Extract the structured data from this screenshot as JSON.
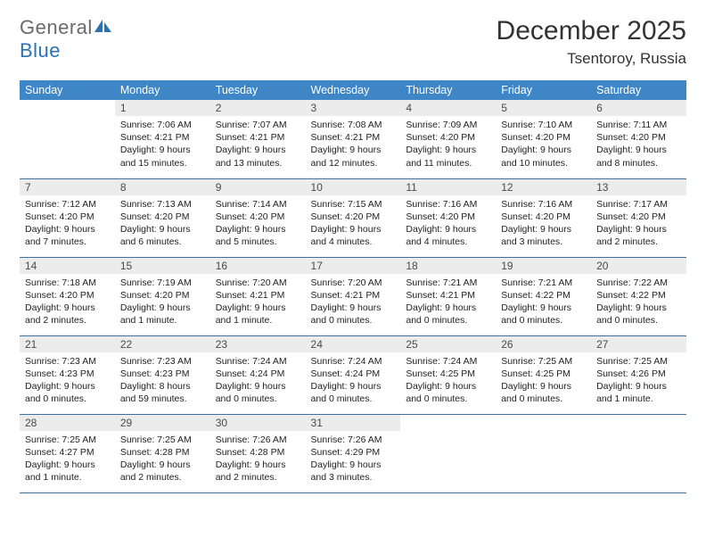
{
  "brand": {
    "part1": "General",
    "part2": "Blue"
  },
  "title": "December 2025",
  "location": "Tsentoroy, Russia",
  "colors": {
    "header_bg": "#3f86c7",
    "header_text": "#ffffff",
    "daynum_bg": "#ececec",
    "daynum_text": "#4a4a4a",
    "row_border": "#3f6e9a",
    "logo_blue": "#2a72b5",
    "logo_gray": "#6a6a6a",
    "page_bg": "#ffffff",
    "body_text": "#222222"
  },
  "weekdays": [
    "Sunday",
    "Monday",
    "Tuesday",
    "Wednesday",
    "Thursday",
    "Friday",
    "Saturday"
  ],
  "weeks": [
    [
      {
        "empty": true
      },
      {
        "num": "1",
        "sunrise": "Sunrise: 7:06 AM",
        "sunset": "Sunset: 4:21 PM",
        "daylight": "Daylight: 9 hours and 15 minutes."
      },
      {
        "num": "2",
        "sunrise": "Sunrise: 7:07 AM",
        "sunset": "Sunset: 4:21 PM",
        "daylight": "Daylight: 9 hours and 13 minutes."
      },
      {
        "num": "3",
        "sunrise": "Sunrise: 7:08 AM",
        "sunset": "Sunset: 4:21 PM",
        "daylight": "Daylight: 9 hours and 12 minutes."
      },
      {
        "num": "4",
        "sunrise": "Sunrise: 7:09 AM",
        "sunset": "Sunset: 4:20 PM",
        "daylight": "Daylight: 9 hours and 11 minutes."
      },
      {
        "num": "5",
        "sunrise": "Sunrise: 7:10 AM",
        "sunset": "Sunset: 4:20 PM",
        "daylight": "Daylight: 9 hours and 10 minutes."
      },
      {
        "num": "6",
        "sunrise": "Sunrise: 7:11 AM",
        "sunset": "Sunset: 4:20 PM",
        "daylight": "Daylight: 9 hours and 8 minutes."
      }
    ],
    [
      {
        "num": "7",
        "sunrise": "Sunrise: 7:12 AM",
        "sunset": "Sunset: 4:20 PM",
        "daylight": "Daylight: 9 hours and 7 minutes."
      },
      {
        "num": "8",
        "sunrise": "Sunrise: 7:13 AM",
        "sunset": "Sunset: 4:20 PM",
        "daylight": "Daylight: 9 hours and 6 minutes."
      },
      {
        "num": "9",
        "sunrise": "Sunrise: 7:14 AM",
        "sunset": "Sunset: 4:20 PM",
        "daylight": "Daylight: 9 hours and 5 minutes."
      },
      {
        "num": "10",
        "sunrise": "Sunrise: 7:15 AM",
        "sunset": "Sunset: 4:20 PM",
        "daylight": "Daylight: 9 hours and 4 minutes."
      },
      {
        "num": "11",
        "sunrise": "Sunrise: 7:16 AM",
        "sunset": "Sunset: 4:20 PM",
        "daylight": "Daylight: 9 hours and 4 minutes."
      },
      {
        "num": "12",
        "sunrise": "Sunrise: 7:16 AM",
        "sunset": "Sunset: 4:20 PM",
        "daylight": "Daylight: 9 hours and 3 minutes."
      },
      {
        "num": "13",
        "sunrise": "Sunrise: 7:17 AM",
        "sunset": "Sunset: 4:20 PM",
        "daylight": "Daylight: 9 hours and 2 minutes."
      }
    ],
    [
      {
        "num": "14",
        "sunrise": "Sunrise: 7:18 AM",
        "sunset": "Sunset: 4:20 PM",
        "daylight": "Daylight: 9 hours and 2 minutes."
      },
      {
        "num": "15",
        "sunrise": "Sunrise: 7:19 AM",
        "sunset": "Sunset: 4:20 PM",
        "daylight": "Daylight: 9 hours and 1 minute."
      },
      {
        "num": "16",
        "sunrise": "Sunrise: 7:20 AM",
        "sunset": "Sunset: 4:21 PM",
        "daylight": "Daylight: 9 hours and 1 minute."
      },
      {
        "num": "17",
        "sunrise": "Sunrise: 7:20 AM",
        "sunset": "Sunset: 4:21 PM",
        "daylight": "Daylight: 9 hours and 0 minutes."
      },
      {
        "num": "18",
        "sunrise": "Sunrise: 7:21 AM",
        "sunset": "Sunset: 4:21 PM",
        "daylight": "Daylight: 9 hours and 0 minutes."
      },
      {
        "num": "19",
        "sunrise": "Sunrise: 7:21 AM",
        "sunset": "Sunset: 4:22 PM",
        "daylight": "Daylight: 9 hours and 0 minutes."
      },
      {
        "num": "20",
        "sunrise": "Sunrise: 7:22 AM",
        "sunset": "Sunset: 4:22 PM",
        "daylight": "Daylight: 9 hours and 0 minutes."
      }
    ],
    [
      {
        "num": "21",
        "sunrise": "Sunrise: 7:23 AM",
        "sunset": "Sunset: 4:23 PM",
        "daylight": "Daylight: 9 hours and 0 minutes."
      },
      {
        "num": "22",
        "sunrise": "Sunrise: 7:23 AM",
        "sunset": "Sunset: 4:23 PM",
        "daylight": "Daylight: 8 hours and 59 minutes."
      },
      {
        "num": "23",
        "sunrise": "Sunrise: 7:24 AM",
        "sunset": "Sunset: 4:24 PM",
        "daylight": "Daylight: 9 hours and 0 minutes."
      },
      {
        "num": "24",
        "sunrise": "Sunrise: 7:24 AM",
        "sunset": "Sunset: 4:24 PM",
        "daylight": "Daylight: 9 hours and 0 minutes."
      },
      {
        "num": "25",
        "sunrise": "Sunrise: 7:24 AM",
        "sunset": "Sunset: 4:25 PM",
        "daylight": "Daylight: 9 hours and 0 minutes."
      },
      {
        "num": "26",
        "sunrise": "Sunrise: 7:25 AM",
        "sunset": "Sunset: 4:25 PM",
        "daylight": "Daylight: 9 hours and 0 minutes."
      },
      {
        "num": "27",
        "sunrise": "Sunrise: 7:25 AM",
        "sunset": "Sunset: 4:26 PM",
        "daylight": "Daylight: 9 hours and 1 minute."
      }
    ],
    [
      {
        "num": "28",
        "sunrise": "Sunrise: 7:25 AM",
        "sunset": "Sunset: 4:27 PM",
        "daylight": "Daylight: 9 hours and 1 minute."
      },
      {
        "num": "29",
        "sunrise": "Sunrise: 7:25 AM",
        "sunset": "Sunset: 4:28 PM",
        "daylight": "Daylight: 9 hours and 2 minutes."
      },
      {
        "num": "30",
        "sunrise": "Sunrise: 7:26 AM",
        "sunset": "Sunset: 4:28 PM",
        "daylight": "Daylight: 9 hours and 2 minutes."
      },
      {
        "num": "31",
        "sunrise": "Sunrise: 7:26 AM",
        "sunset": "Sunset: 4:29 PM",
        "daylight": "Daylight: 9 hours and 3 minutes."
      },
      {
        "empty": true
      },
      {
        "empty": true
      },
      {
        "empty": true
      }
    ]
  ]
}
